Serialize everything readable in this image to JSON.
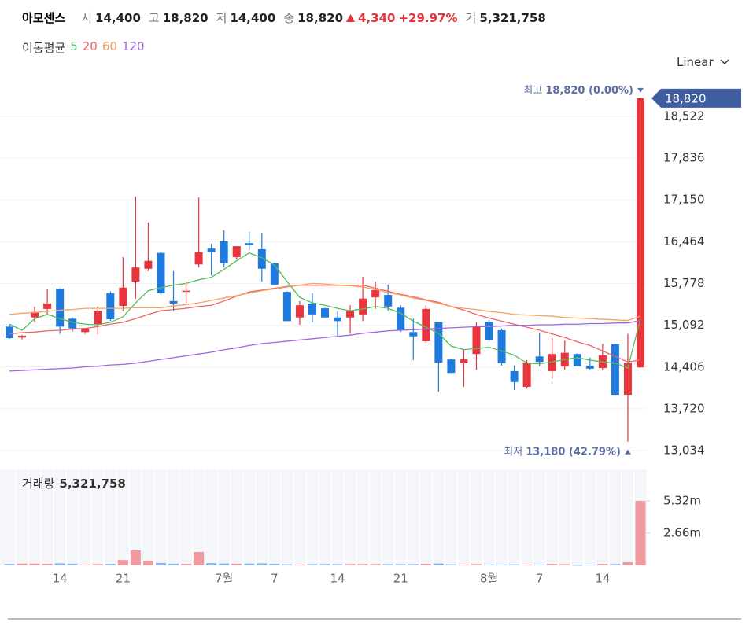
{
  "header": {
    "name": "아모센스",
    "items": [
      {
        "label": "시",
        "value": "14,400"
      },
      {
        "label": "고",
        "value": "18,820"
      },
      {
        "label": "저",
        "value": "14,400"
      },
      {
        "label": "종",
        "value": "18,820"
      }
    ],
    "change": {
      "value": "4,340",
      "percent": "+29.97%"
    },
    "volume": {
      "label": "거",
      "value": "5,321,758"
    }
  },
  "scale_menu": "Linear",
  "chart_data": [
    {
      "type": "candlestick",
      "ma_title": "이동평균",
      "categories": [
        null,
        null,
        null,
        null,
        "14",
        null,
        null,
        null,
        null,
        "21",
        null,
        null,
        null,
        null,
        null,
        null,
        null,
        "7월",
        null,
        null,
        null,
        "7",
        null,
        null,
        null,
        null,
        "14",
        null,
        null,
        null,
        null,
        "21",
        null,
        null,
        null,
        null,
        null,
        null,
        "8월",
        null,
        null,
        null,
        "7",
        null,
        null,
        null,
        null,
        "14",
        null,
        null,
        null
      ],
      "open": [
        15070,
        14890,
        15220,
        15360,
        15690,
        15200,
        14980,
        15110,
        15620,
        15410,
        15810,
        16020,
        16280,
        15490,
        15640,
        16090,
        16350,
        16470,
        16210,
        16440,
        16340,
        16110,
        15640,
        15220,
        15450,
        15370,
        15220,
        15220,
        15270,
        15550,
        15590,
        15380,
        14980,
        14830,
        15140,
        14530,
        14470,
        14620,
        15150,
        15010,
        14340,
        14080,
        14580,
        14340,
        14420,
        14620,
        14430,
        14390,
        14780,
        13950,
        14400
      ],
      "high": [
        15100,
        14930,
        15400,
        15680,
        15700,
        15220,
        15040,
        15400,
        15650,
        16210,
        17210,
        16780,
        16290,
        15980,
        15820,
        17190,
        16430,
        16650,
        16390,
        16620,
        16610,
        16120,
        15650,
        15490,
        15620,
        15380,
        15320,
        15420,
        15890,
        15810,
        15760,
        15420,
        15200,
        15420,
        15140,
        14540,
        14690,
        15140,
        15180,
        15040,
        14430,
        14520,
        14970,
        14880,
        14840,
        14630,
        14560,
        14790,
        14790,
        14950,
        18820
      ],
      "low": [
        14870,
        14860,
        15140,
        15270,
        14950,
        14990,
        14950,
        14950,
        15160,
        15330,
        15530,
        15980,
        15600,
        15330,
        15460,
        16040,
        15910,
        16040,
        16180,
        16330,
        15810,
        15760,
        15160,
        15100,
        15140,
        15220,
        14920,
        14950,
        15160,
        15360,
        15330,
        14980,
        14520,
        14790,
        14000,
        14310,
        14080,
        14360,
        14820,
        14430,
        14030,
        14050,
        14420,
        14210,
        14360,
        14420,
        14360,
        14360,
        13950,
        13180,
        14400
      ],
      "close": [
        14880,
        14920,
        15310,
        15450,
        15070,
        15040,
        15040,
        15330,
        15190,
        15710,
        16040,
        16150,
        15620,
        15450,
        15660,
        16290,
        16290,
        16110,
        16390,
        16410,
        16020,
        15760,
        15160,
        15420,
        15270,
        15220,
        15160,
        15330,
        15530,
        15670,
        15400,
        15010,
        14910,
        15360,
        14480,
        14310,
        14530,
        15070,
        14850,
        14470,
        14160,
        14480,
        14490,
        14620,
        14640,
        14420,
        14380,
        14600,
        13950,
        14480,
        18820
      ],
      "up_color": "#e8343c",
      "down_color": "#1f7ae0",
      "series": [
        {
          "name": "5",
          "color": "#52bf5a",
          "values": [
            15110,
            15010,
            15200,
            15270,
            15200,
            15140,
            15110,
            15100,
            15140,
            15230,
            15460,
            15660,
            15710,
            15750,
            15780,
            15840,
            15880,
            16010,
            16150,
            16280,
            16200,
            16080,
            15810,
            15550,
            15460,
            15420,
            15370,
            15330,
            15360,
            15400,
            15370,
            15290,
            15160,
            15060,
            14960,
            14750,
            14690,
            14710,
            14730,
            14670,
            14600,
            14470,
            14460,
            14490,
            14530,
            14560,
            14520,
            14490,
            14470,
            14390,
            15200
          ]
        },
        {
          "name": "20",
          "color": "#f06464",
          "values": [
            14950,
            14970,
            14980,
            15000,
            15010,
            15030,
            15040,
            15070,
            15110,
            15140,
            15200,
            15270,
            15330,
            15350,
            15370,
            15400,
            15420,
            15490,
            15570,
            15640,
            15670,
            15700,
            15730,
            15750,
            15750,
            15750,
            15750,
            15750,
            15750,
            15700,
            15650,
            15600,
            15560,
            15510,
            15470,
            15400,
            15340,
            15270,
            15210,
            15160,
            15110,
            15060,
            15010,
            14950,
            14890,
            14820,
            14760,
            14670,
            14580,
            14490,
            14520
          ]
        },
        {
          "name": "60",
          "color": "#f3a060",
          "values": [
            15270,
            15290,
            15300,
            15320,
            15340,
            15350,
            15370,
            15370,
            15370,
            15370,
            15380,
            15380,
            15380,
            15410,
            15430,
            15460,
            15500,
            15540,
            15580,
            15620,
            15660,
            15690,
            15720,
            15750,
            15780,
            15770,
            15750,
            15740,
            15720,
            15680,
            15630,
            15590,
            15540,
            15500,
            15450,
            15400,
            15370,
            15350,
            15320,
            15300,
            15270,
            15260,
            15250,
            15240,
            15220,
            15210,
            15200,
            15190,
            15180,
            15170,
            15240
          ]
        },
        {
          "name": "120",
          "color": "#a066e0",
          "values": [
            14340,
            14350,
            14360,
            14370,
            14380,
            14390,
            14410,
            14420,
            14440,
            14450,
            14470,
            14500,
            14530,
            14560,
            14590,
            14620,
            14650,
            14690,
            14720,
            14760,
            14790,
            14810,
            14830,
            14850,
            14870,
            14890,
            14910,
            14930,
            14960,
            14980,
            15000,
            15010,
            15020,
            15030,
            15040,
            15050,
            15060,
            15070,
            15070,
            15080,
            15090,
            15090,
            15100,
            15100,
            15110,
            15110,
            15120,
            15120,
            15130,
            15130,
            15170
          ]
        }
      ],
      "ylim": [
        12944,
        19206
      ],
      "yticks": [
        {
          "value": 13034,
          "label": "13,034"
        },
        {
          "value": 13720,
          "label": "13,720"
        },
        {
          "value": 14406,
          "label": "14,406"
        },
        {
          "value": 15092,
          "label": "15,092"
        },
        {
          "value": 15778,
          "label": "15,778"
        },
        {
          "value": 16464,
          "label": "16,464"
        },
        {
          "value": 17150,
          "label": "17,150"
        },
        {
          "value": 17836,
          "label": "17,836"
        },
        {
          "value": 18522,
          "label": "18,522"
        }
      ],
      "grid": true,
      "high_annotation": {
        "label": "최고",
        "text": "18,820 (0.00%)"
      },
      "low_annotation": {
        "label": "최저",
        "text": "13,180 (42.79%)"
      },
      "last_price_label": "18,820",
      "last_price_color": "#3f5c9e"
    },
    {
      "type": "bar",
      "title": "거래량",
      "latest_label": "5,321,758",
      "values": [
        120000,
        150000,
        150000,
        130000,
        170000,
        140000,
        70000,
        110000,
        120000,
        450000,
        1230000,
        390000,
        200000,
        140000,
        120000,
        1100000,
        190000,
        160000,
        140000,
        150000,
        170000,
        130000,
        90000,
        60000,
        100000,
        110000,
        100000,
        110000,
        110000,
        110000,
        100000,
        100000,
        100000,
        130000,
        160000,
        90000,
        60000,
        110000,
        70000,
        70000,
        80000,
        60000,
        70000,
        120000,
        100000,
        40000,
        60000,
        120000,
        110000,
        260000,
        5321758
      ],
      "up_color": "#f09aa0",
      "down_color": "#8ab8ee",
      "ylim": [
        0,
        7720000
      ],
      "yticks": [
        {
          "value": 2660000,
          "label": "2.66m"
        },
        {
          "value": 5320000,
          "label": "5.32m"
        }
      ]
    }
  ]
}
